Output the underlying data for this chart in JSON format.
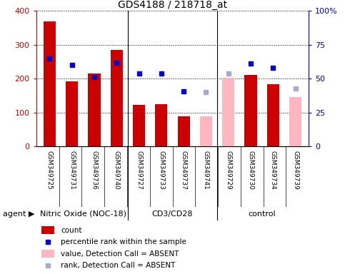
{
  "title": "GDS4188 / 218718_at",
  "samples": [
    "GSM349725",
    "GSM349731",
    "GSM349736",
    "GSM349740",
    "GSM349727",
    "GSM349733",
    "GSM349737",
    "GSM349741",
    "GSM349729",
    "GSM349730",
    "GSM349734",
    "GSM349739"
  ],
  "count_present": [
    370,
    193,
    215,
    284,
    123,
    126,
    90,
    null,
    null,
    211,
    183,
    null
  ],
  "count_absent": [
    null,
    null,
    null,
    null,
    null,
    null,
    null,
    90,
    202,
    null,
    null,
    146
  ],
  "pct_present": [
    65,
    60,
    51,
    62,
    54,
    54,
    41,
    null,
    null,
    61,
    58,
    null
  ],
  "pct_absent": [
    null,
    null,
    null,
    null,
    null,
    null,
    null,
    40,
    54,
    null,
    null,
    43
  ],
  "groups": [
    {
      "label": "Nitric Oxide (NOC-18)",
      "start": 0,
      "end": 4
    },
    {
      "label": "CD3/CD28",
      "start": 4,
      "end": 8
    },
    {
      "label": "control",
      "start": 8,
      "end": 12
    }
  ],
  "ylim_left": [
    0,
    400
  ],
  "ylim_right": [
    0,
    100
  ],
  "yticks_left": [
    0,
    100,
    200,
    300,
    400
  ],
  "yticks_right": [
    0,
    25,
    50,
    75,
    100
  ],
  "yticklabels_right": [
    "0",
    "25",
    "50",
    "75",
    "100%"
  ],
  "bar_color_present": "#CC0000",
  "bar_color_absent": "#FFB6C1",
  "dot_color_present": "#0000CC",
  "dot_color_absent": "#AAAACC",
  "bar_width": 0.55,
  "label_bg_color": "#C8C8C8",
  "group_color": "#66EE66",
  "legend_items": [
    {
      "label": "count",
      "color": "#CC0000",
      "type": "bar"
    },
    {
      "label": "percentile rank within the sample",
      "color": "#0000CC",
      "type": "dot"
    },
    {
      "label": "value, Detection Call = ABSENT",
      "color": "#FFB6C1",
      "type": "bar"
    },
    {
      "label": "rank, Detection Call = ABSENT",
      "color": "#AAAACC",
      "type": "dot"
    }
  ]
}
